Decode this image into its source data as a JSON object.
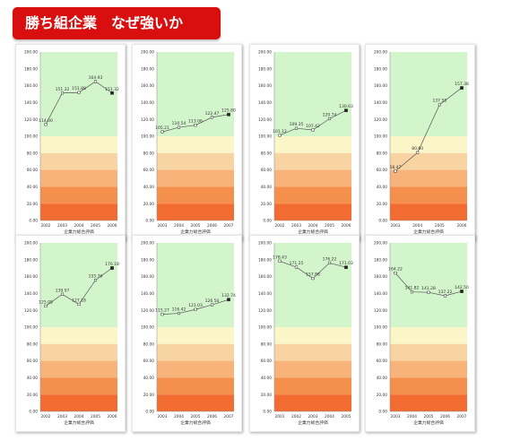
{
  "banner": {
    "title": "勝ち組企業　なぜ強いか"
  },
  "colors": {
    "banner": "#d90f0f",
    "band_green": "#d3f5cc",
    "band_cream": "#fbf6c8",
    "band_peach": "#f8d4a2",
    "band_orange_light": "#f7b37a",
    "band_orange": "#f58f4c",
    "band_red_orange": "#f26b30",
    "line": "#555555"
  },
  "chart_data": [
    {
      "type": "line",
      "title": "",
      "xlabel": "企業力総合評価",
      "ylabel": "",
      "ylim": [
        0,
        200
      ],
      "yticks": [
        "0.00",
        "20.00",
        "40.00",
        "60.00",
        "80.00",
        "100.00",
        "120.00",
        "140.00",
        "160.00",
        "180.00",
        "200.00"
      ],
      "categories": [
        "2002",
        "2003",
        "2004",
        "2005",
        "2006"
      ],
      "values": [
        114.0,
        151.32,
        151.88,
        164.93,
        151.32
      ],
      "labels": [
        "114.00",
        "151.32",
        "151.88",
        "164.93",
        "151.32"
      ]
    },
    {
      "type": "line",
      "title": "",
      "xlabel": "企業力総合評価",
      "ylabel": "",
      "ylim": [
        0,
        200
      ],
      "yticks": [
        "0.00",
        "20.00",
        "40.00",
        "60.00",
        "80.00",
        "100.00",
        "120.00",
        "140.00",
        "160.00",
        "180.00",
        "200.00"
      ],
      "categories": [
        "2003",
        "2004",
        "2005",
        "2006",
        "2007"
      ],
      "values": [
        105.21,
        110.54,
        113.06,
        122.47,
        125.8
      ],
      "labels": [
        "105.21",
        "110.54",
        "113.06",
        "122.47",
        "125.80"
      ]
    },
    {
      "type": "line",
      "title": "",
      "xlabel": "企業力総合評価",
      "ylabel": "",
      "ylim": [
        0,
        200
      ],
      "yticks": [
        "0.00",
        "20.00",
        "40.00",
        "60.00",
        "80.00",
        "100.00",
        "120.00",
        "140.00",
        "160.00",
        "180.00",
        "200.00"
      ],
      "categories": [
        "2002",
        "2003",
        "2004",
        "2005",
        "2006"
      ],
      "values": [
        101.12,
        109.35,
        107.42,
        120.74,
        130.63
      ],
      "labels": [
        "101.12",
        "109.35",
        "107.42",
        "120.74",
        "130.63"
      ]
    },
    {
      "type": "line",
      "title": "",
      "xlabel": "企業力総合評価",
      "ylabel": "",
      "ylim": [
        0,
        200
      ],
      "yticks": [
        "0.00",
        "20.00",
        "40.00",
        "60.00",
        "80.00",
        "100.00",
        "120.00",
        "140.00",
        "160.00",
        "180.00",
        "200.00"
      ],
      "categories": [
        "2003",
        "2004",
        "2005",
        "2006"
      ],
      "values": [
        58.47,
        80.6,
        137.55,
        157.38
      ],
      "labels": [
        "58.47",
        "80.60",
        "137.55",
        "157.38"
      ]
    },
    {
      "type": "line",
      "title": "",
      "xlabel": "企業力総合評価",
      "ylabel": "",
      "ylim": [
        0,
        200
      ],
      "yticks": [
        "0.00",
        "20.00",
        "40.00",
        "60.00",
        "80.00",
        "100.00",
        "120.00",
        "140.00",
        "160.00",
        "180.00",
        "200.00"
      ],
      "categories": [
        "2002",
        "2003",
        "2004",
        "2005",
        "2006"
      ],
      "values": [
        125.05,
        139.07,
        127.18,
        155.76,
        170.18
      ],
      "labels": [
        "125.05",
        "139.07",
        "127.18",
        "155.76",
        "170.18"
      ]
    },
    {
      "type": "line",
      "title": "",
      "xlabel": "企業力総合評価",
      "ylabel": "",
      "ylim": [
        0,
        200
      ],
      "yticks": [
        "0.00",
        "20.00",
        "40.00",
        "60.00",
        "80.00",
        "100.00",
        "120.00",
        "140.00",
        "160.00",
        "180.00",
        "200.00"
      ],
      "categories": [
        "2003",
        "2004",
        "2005",
        "2006",
        "2007"
      ],
      "values": [
        115.27,
        116.42,
        121.03,
        126.5,
        132.74
      ],
      "labels": [
        "115.27",
        "116.42",
        "121.03",
        "126.50",
        "132.74"
      ]
    },
    {
      "type": "line",
      "title": "",
      "xlabel": "企業力総合評価",
      "ylabel": "",
      "ylim": [
        0,
        200
      ],
      "yticks": [
        "0.00",
        "20.00",
        "40.00",
        "60.00",
        "80.00",
        "100.00",
        "120.00",
        "140.00",
        "160.00",
        "180.00",
        "200.00"
      ],
      "categories": [
        "2001",
        "2002",
        "2003",
        "2004",
        "2005"
      ],
      "values": [
        178.43,
        171.25,
        157.88,
        176.22,
        171.03
      ],
      "labels": [
        "178.43",
        "171.25",
        "157.88",
        "176.22",
        "171.03"
      ]
    },
    {
      "type": "line",
      "title": "",
      "xlabel": "企業力総合評価",
      "ylabel": "",
      "ylim": [
        0,
        200
      ],
      "yticks": [
        "0.00",
        "20.00",
        "40.00",
        "60.00",
        "80.00",
        "100.00",
        "120.00",
        "140.00",
        "160.00",
        "180.00",
        "200.00"
      ],
      "categories": [
        "2003",
        "2004",
        "2005",
        "2006",
        "2007"
      ],
      "values": [
        164.22,
        141.82,
        141.28,
        137.22,
        142.5
      ],
      "labels": [
        "164.22",
        "141.82",
        "141.28",
        "137.22",
        "142.50"
      ]
    }
  ]
}
